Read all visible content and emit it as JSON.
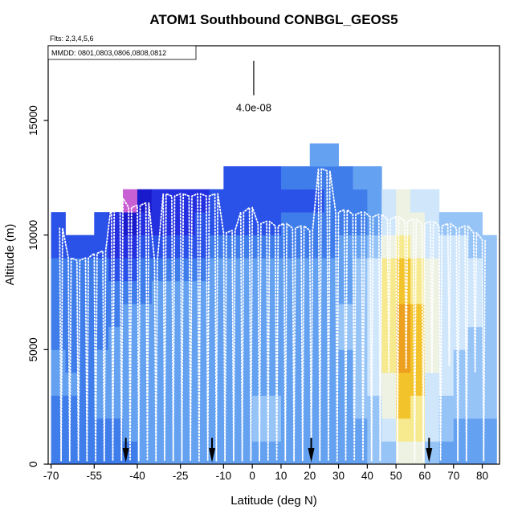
{
  "page": {
    "background": "#ffffff"
  },
  "chart_data": {
    "type": "heatmap",
    "title": "ATOM1 Southbound CONBGL_GEOS5",
    "subtitle_flights": "Flts: 2,3,4,5,6",
    "box_note": "MMDD: 0801,0803,0806,0808,0812",
    "xlabel": "Latitude (deg N)",
    "ylabel": "Altitude (m)",
    "xlim": [
      -71,
      86
    ],
    "ylim_m": [
      0,
      18260
    ],
    "x_ticks": [
      -70,
      -55,
      -40,
      -25,
      -10,
      0,
      10,
      20,
      30,
      40,
      50,
      60,
      70,
      80
    ],
    "y_ticks_m": [
      0,
      5000,
      10000,
      15000
    ],
    "scale_bar": {
      "label": "4.0e-08",
      "lat": 0.5,
      "alt_top_m": 17600,
      "alt_bottom_m": 16100
    },
    "arrow_lats": [
      -44,
      -14,
      20.5,
      61.5
    ],
    "arrow_color": "#000000",
    "heatmap": {
      "comment": "grid rows listed bottom-to-top, one row per 1000 m; columns 5 deg wide starting at lat -70; value 0 = no data, otherwise index into palette",
      "lat_start": -70,
      "dlat": 5,
      "alt_start_m": 0,
      "dalt_m": 1000,
      "palette": [
        "#1a1acd",
        "#2430e0",
        "#2a52e8",
        "#3f7deb",
        "#64a1f0",
        "#97c4f7",
        "#cfe6fb",
        "#eef2e2",
        "#f6e98e",
        "#f3c32c",
        "#eca01e",
        "#c85fd2"
      ],
      "grid": [
        [
          4,
          4,
          4,
          4,
          4,
          4,
          5,
          5,
          5,
          5,
          5,
          5,
          5,
          5,
          5,
          5,
          5,
          5,
          5,
          5,
          5,
          5,
          6,
          6,
          8,
          8,
          6,
          5,
          5,
          5,
          5
        ],
        [
          4,
          4,
          4,
          4,
          4,
          5,
          5,
          5,
          5,
          5,
          5,
          5,
          5,
          5,
          6,
          6,
          5,
          5,
          5,
          5,
          5,
          5,
          6,
          7,
          9,
          9,
          7,
          6,
          5,
          5,
          5
        ],
        [
          4,
          4,
          4,
          5,
          5,
          5,
          5,
          5,
          5,
          5,
          5,
          5,
          5,
          5,
          6,
          6,
          5,
          5,
          5,
          5,
          5,
          6,
          6,
          8,
          10,
          9,
          7,
          6,
          6,
          6,
          6
        ],
        [
          5,
          5,
          4,
          5,
          5,
          5,
          5,
          5,
          5,
          5,
          5,
          5,
          5,
          5,
          5,
          5,
          5,
          5,
          5,
          5,
          5,
          6,
          7,
          8,
          10,
          10,
          7,
          7,
          6,
          6,
          6
        ],
        [
          5,
          4,
          4,
          5,
          5,
          5,
          5,
          5,
          5,
          5,
          5,
          5,
          5,
          5,
          5,
          5,
          5,
          5,
          5,
          5,
          5,
          6,
          7,
          9,
          11,
          10,
          8,
          7,
          6,
          6,
          6
        ],
        [
          4,
          4,
          4,
          4,
          5,
          5,
          5,
          5,
          5,
          5,
          5,
          5,
          5,
          5,
          5,
          5,
          5,
          5,
          5,
          5,
          6,
          6,
          7,
          9,
          11,
          10,
          8,
          7,
          7,
          6,
          6
        ],
        [
          4,
          4,
          4,
          4,
          4,
          5,
          5,
          5,
          5,
          5,
          5,
          5,
          5,
          5,
          5,
          5,
          5,
          5,
          5,
          5,
          6,
          6,
          7,
          9,
          11,
          10,
          8,
          7,
          7,
          7,
          6
        ],
        [
          4,
          4,
          4,
          4,
          4,
          4,
          4,
          5,
          5,
          5,
          5,
          5,
          5,
          5,
          5,
          5,
          5,
          5,
          5,
          5,
          5,
          6,
          7,
          9,
          10,
          9,
          8,
          7,
          7,
          7,
          6
        ],
        [
          4,
          4,
          4,
          4,
          3,
          3,
          4,
          4,
          4,
          4,
          4,
          5,
          5,
          5,
          5,
          5,
          5,
          5,
          5,
          5,
          5,
          6,
          7,
          9,
          10,
          9,
          8,
          7,
          7,
          7,
          6
        ],
        [
          3,
          3,
          3,
          3,
          2,
          2,
          3,
          3,
          3,
          3,
          3,
          4,
          4,
          4,
          4,
          4,
          4,
          4,
          4,
          4,
          5,
          5,
          6,
          8,
          9,
          8,
          7,
          7,
          7,
          6,
          6
        ],
        [
          3,
          0,
          0,
          3,
          2,
          1,
          2,
          2,
          2,
          2,
          3,
          3,
          3,
          3,
          3,
          3,
          4,
          4,
          4,
          4,
          4,
          4,
          5,
          7,
          8,
          8,
          7,
          6,
          6,
          6,
          0
        ],
        [
          0,
          0,
          0,
          0,
          0,
          12,
          1,
          2,
          2,
          2,
          2,
          3,
          3,
          3,
          3,
          3,
          3,
          3,
          3,
          4,
          4,
          4,
          5,
          7,
          8,
          7,
          7,
          0,
          0,
          0,
          0
        ],
        [
          0,
          0,
          0,
          0,
          0,
          0,
          0,
          0,
          0,
          0,
          0,
          0,
          3,
          3,
          3,
          3,
          4,
          4,
          4,
          4,
          4,
          5,
          5,
          0,
          0,
          0,
          0,
          0,
          0,
          0,
          0
        ],
        [
          0,
          0,
          0,
          0,
          0,
          0,
          0,
          0,
          0,
          0,
          0,
          0,
          0,
          0,
          0,
          0,
          0,
          0,
          5,
          5,
          0,
          0,
          0,
          0,
          0,
          0,
          0,
          0,
          0,
          0,
          0
        ]
      ]
    },
    "flight_track": {
      "color": "#ffffff",
      "style": "dotted",
      "comment": "each entry = [latitude_deg, cruise_top_km, dip_bottom_km]; consecutive entries are connected at cruise altitude",
      "dips": [
        [
          -66.5,
          10.3,
          0.15
        ],
        [
          -63.5,
          9.0,
          0.15
        ],
        [
          -60.5,
          8.9,
          0.15
        ],
        [
          -57.5,
          9.0,
          0.15
        ],
        [
          -54.5,
          9.2,
          0.15
        ],
        [
          -51.5,
          9.3,
          0.15
        ],
        [
          -48.5,
          11.4,
          0.15
        ],
        [
          -45.5,
          11.6,
          0.15
        ],
        [
          -42.5,
          11.2,
          0.15
        ],
        [
          -39.5,
          11.3,
          0.15
        ],
        [
          -36.5,
          11.4,
          0.15
        ],
        [
          -33.5,
          8.9,
          0.15
        ],
        [
          -30.5,
          11.8,
          0.15
        ],
        [
          -27.5,
          11.7,
          0.15
        ],
        [
          -24.5,
          11.8,
          0.15
        ],
        [
          -21.5,
          11.7,
          0.15
        ],
        [
          -18.5,
          11.8,
          0.15
        ],
        [
          -15.5,
          11.7,
          0.15
        ],
        [
          -12.5,
          11.8,
          0.15
        ],
        [
          -9.5,
          10.1,
          0.15
        ],
        [
          -6.5,
          10.2,
          0.15
        ],
        [
          -3.5,
          11.0,
          0.15
        ],
        [
          -0.5,
          11.2,
          0.15
        ],
        [
          2.5,
          10.5,
          0.15
        ],
        [
          5.5,
          10.6,
          0.15
        ],
        [
          8.5,
          10.4,
          0.15
        ],
        [
          11.5,
          10.5,
          0.15
        ],
        [
          14.5,
          10.3,
          0.15
        ],
        [
          17.5,
          10.4,
          0.15
        ],
        [
          20.5,
          10.2,
          0.15
        ],
        [
          23.5,
          12.9,
          0.15
        ],
        [
          26.5,
          12.8,
          0.15
        ],
        [
          29.5,
          11.0,
          0.15
        ],
        [
          32.5,
          11.1,
          0.15
        ],
        [
          35.5,
          10.9,
          0.15
        ],
        [
          38.5,
          11.0,
          0.15
        ],
        [
          41.5,
          10.8,
          0.15
        ],
        [
          44.5,
          10.9,
          0.15
        ],
        [
          47.5,
          10.7,
          4.0
        ],
        [
          50.5,
          10.8,
          0.15
        ],
        [
          53.5,
          10.6,
          4.2
        ],
        [
          56.5,
          10.7,
          0.15
        ],
        [
          59.5,
          10.5,
          0.15
        ],
        [
          62.5,
          10.6,
          4.0
        ],
        [
          65.5,
          10.4,
          0.15
        ],
        [
          68.5,
          10.5,
          4.3
        ],
        [
          71.5,
          10.3,
          0.15
        ],
        [
          74.5,
          10.4,
          0.15
        ],
        [
          77.5,
          10.1,
          4.0
        ],
        [
          80.5,
          9.8,
          0.15
        ]
      ]
    }
  }
}
